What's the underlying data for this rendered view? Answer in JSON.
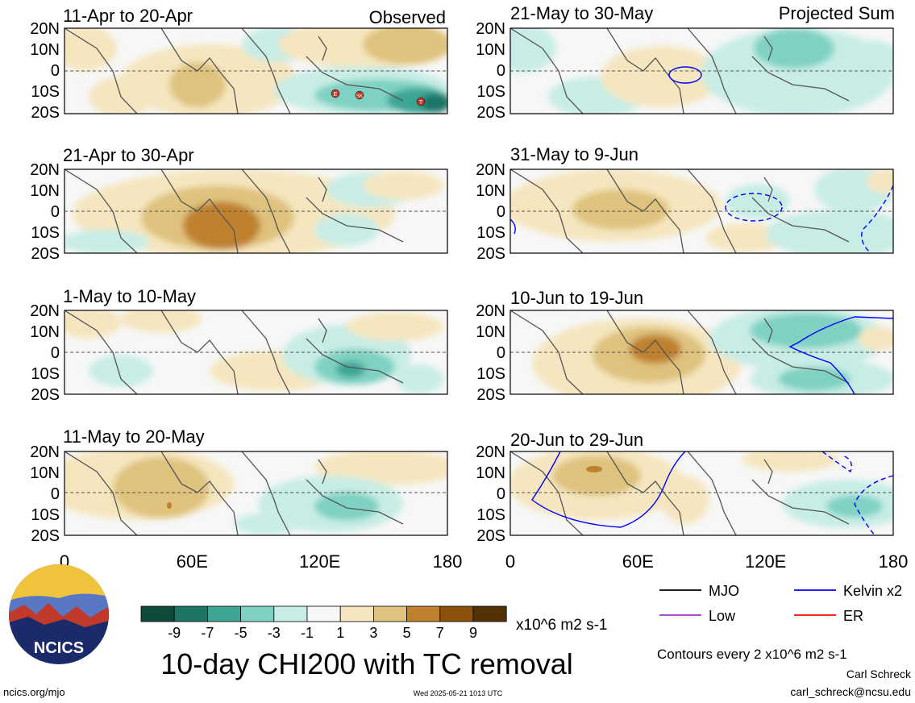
{
  "title": "10-day CHI200 with TC removal",
  "columns": [
    {
      "label": "Observed"
    },
    {
      "label": "Projected Sum"
    }
  ],
  "panels": [
    {
      "period": "11-Apr to 20-Apr"
    },
    {
      "period": "21-Apr to 30-Apr"
    },
    {
      "period": "1-May to 10-May"
    },
    {
      "period": "11-May to 20-May"
    },
    {
      "period": "21-May to 30-May"
    },
    {
      "period": "31-May to 9-Jun"
    },
    {
      "period": "10-Jun to 19-Jun"
    },
    {
      "period": "20-Jun to 29-Jun"
    }
  ],
  "lat_labels": [
    "20N",
    "10N",
    "0",
    "10S",
    "20S"
  ],
  "lon_labels": [
    "0",
    "60E",
    "120E",
    "180"
  ],
  "colorbar": {
    "colors": [
      "#0f4a3c",
      "#1e7566",
      "#3ea595",
      "#7fd1c3",
      "#c8ede6",
      "#f7f7f7",
      "#f5e6bf",
      "#dfc27d",
      "#bf812d",
      "#8c510a",
      "#543005"
    ],
    "tick_labels": [
      "-9",
      "-7",
      "-5",
      "-3",
      "-1",
      "1",
      "3",
      "5",
      "7",
      "9"
    ],
    "units": "x10^6 m2 s-1"
  },
  "legend": [
    {
      "label": "MJO",
      "color": "#000000"
    },
    {
      "label": "Kelvin x2",
      "color": "#0000ff"
    },
    {
      "label": "Low",
      "color": "#9933cc"
    },
    {
      "label": "ER",
      "color": "#ff0000"
    }
  ],
  "contour_note": "Contours every 2 x10^6 m2 s-1",
  "author": "Carl Schreck",
  "email": "carl_schreck@ncsu.edu",
  "website": "ncics.org/mjo",
  "timestamp": "Wed 2025-05-21 1013 UTC",
  "logo_text": "NCICS",
  "tc_markers": [
    "E",
    "SK",
    "T"
  ]
}
